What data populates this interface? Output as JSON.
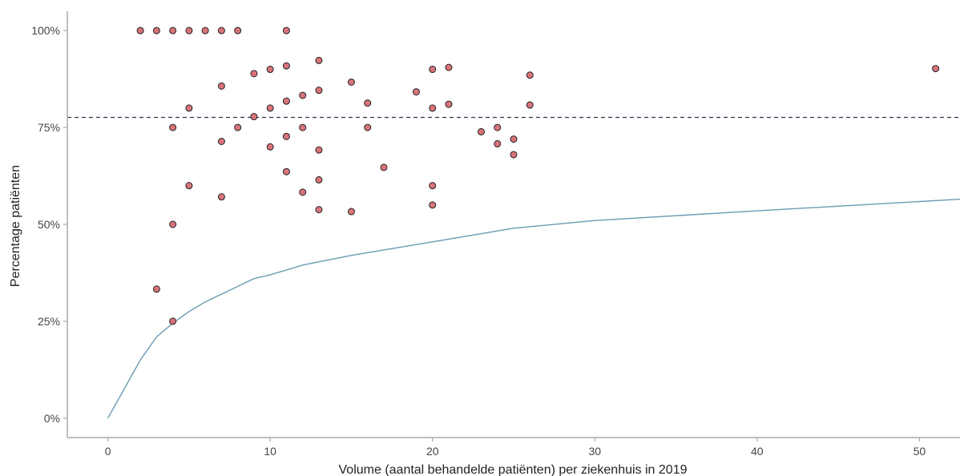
{
  "chart_data": {
    "type": "scatter",
    "xlabel": "Volume (aantal behandelde patiënten) per ziekenhuis in 2019",
    "ylabel": "Percentage patiënten",
    "xlim": [
      -2.5,
      52.5
    ],
    "ylim": [
      -0.05,
      1.05
    ],
    "x_ticks": [
      0,
      10,
      20,
      30,
      40,
      50
    ],
    "x_tick_labels": [
      "0",
      "10",
      "20",
      "30",
      "40",
      "50"
    ],
    "y_ticks": [
      0,
      0.25,
      0.5,
      0.75,
      1.0
    ],
    "y_tick_labels": [
      "0%",
      "25%",
      "50%",
      "75%",
      "100%"
    ],
    "grid": false,
    "colors": {
      "points_fill": "#d9737a",
      "points_stroke": "#222222",
      "reference_line": "#333355",
      "curve": "#6b9db3",
      "axis": "#aaaaaa"
    },
    "reference_line": {
      "y": 0.776,
      "style": "dashed"
    },
    "curve": {
      "x": [
        0,
        1,
        2,
        3,
        4,
        5,
        6,
        7,
        8,
        9,
        10,
        12,
        15,
        20,
        25,
        30,
        40,
        52.5
      ],
      "y": [
        0.0,
        0.075,
        0.15,
        0.21,
        0.245,
        0.275,
        0.3,
        0.32,
        0.34,
        0.36,
        0.37,
        0.395,
        0.42,
        0.455,
        0.49,
        0.51,
        0.535,
        0.565
      ]
    },
    "points": [
      {
        "x": 2,
        "y": 1.0
      },
      {
        "x": 3,
        "y": 1.0
      },
      {
        "x": 4,
        "y": 1.0
      },
      {
        "x": 5,
        "y": 1.0
      },
      {
        "x": 6,
        "y": 1.0
      },
      {
        "x": 7,
        "y": 1.0
      },
      {
        "x": 8,
        "y": 1.0
      },
      {
        "x": 11,
        "y": 1.0
      },
      {
        "x": 13,
        "y": 0.923
      },
      {
        "x": 11,
        "y": 0.909
      },
      {
        "x": 21,
        "y": 0.905
      },
      {
        "x": 10,
        "y": 0.9
      },
      {
        "x": 20,
        "y": 0.9
      },
      {
        "x": 51,
        "y": 0.902
      },
      {
        "x": 9,
        "y": 0.889
      },
      {
        "x": 26,
        "y": 0.885
      },
      {
        "x": 15,
        "y": 0.867
      },
      {
        "x": 7,
        "y": 0.857
      },
      {
        "x": 13,
        "y": 0.846
      },
      {
        "x": 19,
        "y": 0.842
      },
      {
        "x": 12,
        "y": 0.833
      },
      {
        "x": 11,
        "y": 0.818
      },
      {
        "x": 16,
        "y": 0.813
      },
      {
        "x": 21,
        "y": 0.81
      },
      {
        "x": 26,
        "y": 0.808
      },
      {
        "x": 5,
        "y": 0.8
      },
      {
        "x": 10,
        "y": 0.8
      },
      {
        "x": 20,
        "y": 0.8
      },
      {
        "x": 9,
        "y": 0.778
      },
      {
        "x": 4,
        "y": 0.75
      },
      {
        "x": 8,
        "y": 0.75
      },
      {
        "x": 12,
        "y": 0.75
      },
      {
        "x": 16,
        "y": 0.75
      },
      {
        "x": 24,
        "y": 0.75
      },
      {
        "x": 23,
        "y": 0.739
      },
      {
        "x": 11,
        "y": 0.727
      },
      {
        "x": 25,
        "y": 0.72
      },
      {
        "x": 7,
        "y": 0.714
      },
      {
        "x": 24,
        "y": 0.708
      },
      {
        "x": 10,
        "y": 0.7
      },
      {
        "x": 13,
        "y": 0.692
      },
      {
        "x": 25,
        "y": 0.68
      },
      {
        "x": 17,
        "y": 0.647
      },
      {
        "x": 11,
        "y": 0.636
      },
      {
        "x": 13,
        "y": 0.615
      },
      {
        "x": 5,
        "y": 0.6
      },
      {
        "x": 20,
        "y": 0.6
      },
      {
        "x": 12,
        "y": 0.583
      },
      {
        "x": 7,
        "y": 0.571
      },
      {
        "x": 20,
        "y": 0.55
      },
      {
        "x": 13,
        "y": 0.538
      },
      {
        "x": 15,
        "y": 0.533
      },
      {
        "x": 4,
        "y": 0.5
      },
      {
        "x": 3,
        "y": 0.333
      },
      {
        "x": 4,
        "y": 0.25
      }
    ]
  }
}
